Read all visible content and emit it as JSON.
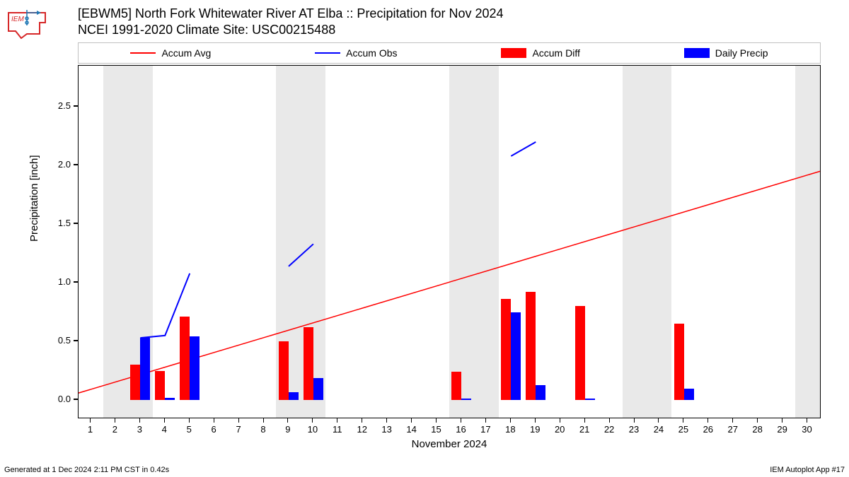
{
  "title_line1": "[EBWM5] North Fork Whitewater River  AT Elba :: Precipitation for Nov 2024",
  "title_line2": "NCEI 1991-2020 Climate Site: USC00215488",
  "ylabel": "Precipitation [inch]",
  "xlabel": "November 2024",
  "footer_left": "Generated at 1 Dec 2024 2:11 PM CST in 0.42s",
  "footer_right": "IEM Autoplot App #17",
  "legend": [
    {
      "kind": "line",
      "color": "#ff0000",
      "label": "Accum Avg"
    },
    {
      "kind": "line",
      "color": "#0000ff",
      "label": "Accum Obs"
    },
    {
      "kind": "rect",
      "color": "#ff0000",
      "label": "Accum Diff"
    },
    {
      "kind": "rect",
      "color": "#0000ff",
      "label": "Daily Precip"
    }
  ],
  "chart": {
    "type": "combo-bar-line",
    "background_color": "#ffffff",
    "shade_color": "#e9e9e9",
    "border_color": "#000000",
    "x": {
      "min": 0.5,
      "max": 30.5,
      "ticks": [
        1,
        2,
        3,
        4,
        5,
        6,
        7,
        8,
        9,
        10,
        11,
        12,
        13,
        14,
        15,
        16,
        17,
        18,
        19,
        20,
        21,
        22,
        23,
        24,
        25,
        26,
        27,
        28,
        29,
        30
      ]
    },
    "y": {
      "min": -0.15,
      "max": 2.85,
      "ticks": [
        0.0,
        0.5,
        1.0,
        1.5,
        2.0,
        2.5
      ],
      "tick_labels": [
        "0.0",
        "0.5",
        "1.0",
        "1.5",
        "2.0",
        "2.5"
      ]
    },
    "weekend_shade_days": [
      2,
      3,
      9,
      10,
      16,
      17,
      23,
      24,
      30
    ],
    "accum_avg": {
      "color": "#ff0000",
      "width": 1.5,
      "points": [
        [
          0.5,
          0.06
        ],
        [
          30.5,
          1.95
        ]
      ]
    },
    "accum_obs_segments": {
      "color": "#0000ff",
      "width": 2,
      "segments": [
        [
          [
            3,
            0.53
          ],
          [
            4,
            0.55
          ],
          [
            5,
            1.08
          ]
        ],
        [
          [
            9,
            1.14
          ],
          [
            10,
            1.33
          ]
        ],
        [
          [
            18,
            2.08
          ],
          [
            19,
            2.2
          ]
        ]
      ]
    },
    "bars_diff": {
      "color": "#ff0000",
      "width": 0.4,
      "offset": -0.2,
      "data": [
        [
          3,
          0.3
        ],
        [
          4,
          0.25
        ],
        [
          5,
          0.71
        ],
        [
          9,
          0.5
        ],
        [
          10,
          0.62
        ],
        [
          16,
          0.24
        ],
        [
          18,
          0.86
        ],
        [
          19,
          0.92
        ],
        [
          21,
          0.8
        ],
        [
          25,
          0.65
        ]
      ]
    },
    "bars_daily": {
      "color": "#0000ff",
      "width": 0.4,
      "offset": 0.2,
      "data": [
        [
          3,
          0.53
        ],
        [
          4,
          0.02
        ],
        [
          5,
          0.54
        ],
        [
          9,
          0.07
        ],
        [
          10,
          0.19
        ],
        [
          16,
          0.01
        ],
        [
          18,
          0.75
        ],
        [
          19,
          0.13
        ],
        [
          21,
          0.01
        ],
        [
          25,
          0.1
        ]
      ]
    }
  },
  "logo": {
    "top_text": "IEM",
    "colors": {
      "outline": "#d62728",
      "fill": "#ffffff",
      "accent": "#1f77b4"
    }
  }
}
